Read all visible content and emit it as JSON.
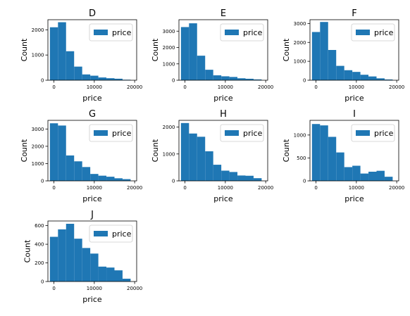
{
  "chart_data": [
    {
      "type": "bar",
      "title": "D",
      "xlabel": "price",
      "ylabel": "Count",
      "legend": [
        "price"
      ],
      "legend_position": "upper-right",
      "xlim": [
        -1500,
        20500
      ],
      "ylim": [
        0,
        2400
      ],
      "xticks": [
        0,
        10000,
        20000
      ],
      "xtick_labels": [
        "0",
        "10000",
        "20000"
      ],
      "yticks": [
        0,
        1000,
        2000
      ],
      "ytick_labels": [
        "0",
        "1000",
        "2000"
      ],
      "bin_edges": [
        -1000,
        1000,
        3000,
        5000,
        7000,
        9000,
        11000,
        13000,
        15000,
        17000,
        19000
      ],
      "values": [
        2100,
        2300,
        1150,
        540,
        230,
        180,
        110,
        80,
        60,
        20
      ]
    },
    {
      "type": "bar",
      "title": "E",
      "xlabel": "price",
      "ylabel": "Count",
      "legend": [
        "price"
      ],
      "legend_position": "upper-right",
      "xlim": [
        -1500,
        20500
      ],
      "ylim": [
        0,
        3700
      ],
      "xticks": [
        0,
        10000,
        20000
      ],
      "xtick_labels": [
        "0",
        "10000",
        "20000"
      ],
      "yticks": [
        0,
        1000,
        2000,
        3000
      ],
      "ytick_labels": [
        "0",
        "1000",
        "2000",
        "3000"
      ],
      "bin_edges": [
        -1000,
        1000,
        3000,
        5000,
        7000,
        9000,
        11000,
        13000,
        15000,
        17000,
        19000
      ],
      "values": [
        3250,
        3480,
        1500,
        640,
        300,
        240,
        200,
        120,
        90,
        50
      ]
    },
    {
      "type": "bar",
      "title": "F",
      "xlabel": "price",
      "ylabel": "Count",
      "legend": [
        "price"
      ],
      "legend_position": "upper-right",
      "xlim": [
        -1500,
        20500
      ],
      "ylim": [
        0,
        3200
      ],
      "xticks": [
        0,
        10000,
        20000
      ],
      "xtick_labels": [
        "0",
        "10000",
        "20000"
      ],
      "yticks": [
        0,
        1000,
        2000,
        3000
      ],
      "ytick_labels": [
        "0",
        "1000",
        "2000",
        "3000"
      ],
      "bin_edges": [
        -1000,
        1000,
        3000,
        5000,
        7000,
        9000,
        11000,
        13000,
        15000,
        17000,
        19000
      ],
      "values": [
        2550,
        3080,
        1600,
        760,
        530,
        440,
        290,
        200,
        100,
        40
      ]
    },
    {
      "type": "bar",
      "title": "G",
      "xlabel": "price",
      "ylabel": "Count",
      "legend": [
        "price"
      ],
      "legend_position": "upper-right",
      "xlim": [
        -1500,
        20500
      ],
      "ylim": [
        0,
        3500
      ],
      "xticks": [
        0,
        10000,
        20000
      ],
      "xtick_labels": [
        "0",
        "10000",
        "20000"
      ],
      "yticks": [
        0,
        1000,
        2000,
        3000
      ],
      "ytick_labels": [
        "0",
        "1000",
        "2000",
        "3000"
      ],
      "bin_edges": [
        -1000,
        1000,
        3000,
        5000,
        7000,
        9000,
        11000,
        13000,
        15000,
        17000,
        19000
      ],
      "values": [
        3330,
        3200,
        1470,
        1130,
        800,
        400,
        300,
        240,
        150,
        100
      ]
    },
    {
      "type": "bar",
      "title": "H",
      "xlabel": "price",
      "ylabel": "Count",
      "legend": [
        "price"
      ],
      "legend_position": "upper-right",
      "xlim": [
        -1500,
        20500
      ],
      "ylim": [
        0,
        2250
      ],
      "xticks": [
        0,
        10000,
        20000
      ],
      "xtick_labels": [
        "0",
        "10000",
        "20000"
      ],
      "yticks": [
        0,
        1000,
        2000
      ],
      "ytick_labels": [
        "0",
        "1000",
        "2000"
      ],
      "bin_edges": [
        -1000,
        1000,
        3000,
        5000,
        7000,
        9000,
        11000,
        13000,
        15000,
        17000,
        19000
      ],
      "values": [
        2150,
        1760,
        1640,
        1100,
        600,
        380,
        330,
        200,
        190,
        100
      ]
    },
    {
      "type": "bar",
      "title": "I",
      "xlabel": "price",
      "ylabel": "Count",
      "legend": [
        "price"
      ],
      "legend_position": "upper-right",
      "xlim": [
        -1500,
        20500
      ],
      "ylim": [
        0,
        1320
      ],
      "xticks": [
        0,
        10000,
        20000
      ],
      "xtick_labels": [
        "0",
        "10000",
        "20000"
      ],
      "yticks": [
        0,
        500,
        1000
      ],
      "ytick_labels": [
        "0",
        "500",
        "1000"
      ],
      "bin_edges": [
        -1000,
        1000,
        3000,
        5000,
        7000,
        9000,
        11000,
        13000,
        15000,
        17000,
        19000
      ],
      "values": [
        1240,
        1210,
        960,
        620,
        300,
        330,
        160,
        200,
        220,
        90
      ]
    },
    {
      "type": "bar",
      "title": "J",
      "xlabel": "price",
      "ylabel": "Count",
      "legend": [
        "price"
      ],
      "legend_position": "upper-right",
      "xlim": [
        -1500,
        20500
      ],
      "ylim": [
        0,
        650
      ],
      "xticks": [
        0,
        10000,
        20000
      ],
      "xtick_labels": [
        "0",
        "10000",
        "20000"
      ],
      "yticks": [
        0,
        200,
        400,
        600
      ],
      "ytick_labels": [
        "0",
        "200",
        "400",
        "600"
      ],
      "bin_edges": [
        -1000,
        1000,
        3000,
        5000,
        7000,
        9000,
        11000,
        13000,
        15000,
        17000,
        19000
      ],
      "values": [
        480,
        560,
        620,
        460,
        360,
        300,
        160,
        150,
        120,
        30
      ]
    }
  ],
  "colors": {
    "bar": "#1f77b4",
    "axis": "#000000",
    "legend_border": "#cccccc"
  }
}
